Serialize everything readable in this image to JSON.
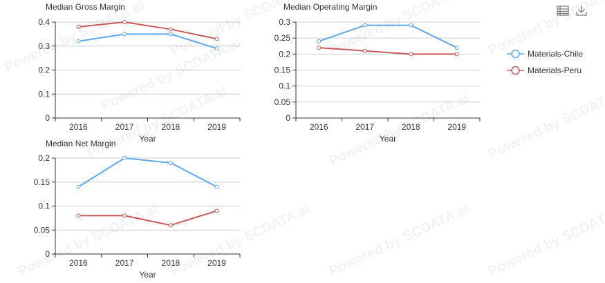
{
  "toolbar": {
    "data_view_icon": "table-icon",
    "download_icon": "download-icon"
  },
  "watermark": {
    "text": "Powered by SCDATA.ai"
  },
  "colors": {
    "chile": "#5aa8ef",
    "peru": "#c9585a",
    "axis": "#333333",
    "grid": "#cccccc"
  },
  "legend": {
    "placement": "right",
    "items": [
      {
        "label": "Materials-Chile",
        "color": "#5aa8ef"
      },
      {
        "label": "Materials-Peru",
        "color": "#c9585a"
      }
    ]
  },
  "chart_data": [
    {
      "type": "line",
      "title": "Median Gross Margin",
      "xlabel": "Year",
      "ylabel": "",
      "categories": [
        "2016",
        "2017",
        "2018",
        "2019"
      ],
      "ylim": [
        0,
        0.4
      ],
      "yticks": [
        "0",
        "0.1",
        "0.2",
        "0.3",
        "0.4"
      ],
      "grid": true,
      "series": [
        {
          "name": "Materials-Chile",
          "values": [
            0.32,
            0.35,
            0.35,
            0.29
          ]
        },
        {
          "name": "Materials-Peru",
          "values": [
            0.38,
            0.4,
            0.37,
            0.33
          ]
        }
      ]
    },
    {
      "type": "line",
      "title": "Median Operating Margin",
      "xlabel": "Year",
      "ylabel": "",
      "categories": [
        "2016",
        "2017",
        "2018",
        "2019"
      ],
      "ylim": [
        0,
        0.3
      ],
      "yticks": [
        "0",
        "0.05",
        "0.1",
        "0.15",
        "0.2",
        "0.25",
        "0.3"
      ],
      "grid": true,
      "series": [
        {
          "name": "Materials-Chile",
          "values": [
            0.24,
            0.29,
            0.29,
            0.22
          ]
        },
        {
          "name": "Materials-Peru",
          "values": [
            0.22,
            0.21,
            0.2,
            0.2
          ]
        }
      ]
    },
    {
      "type": "line",
      "title": "Median Net Margin",
      "xlabel": "Year",
      "ylabel": "",
      "categories": [
        "2016",
        "2017",
        "2018",
        "2019"
      ],
      "ylim": [
        0,
        0.2
      ],
      "yticks": [
        "0",
        "0.05",
        "0.1",
        "0.15",
        "0.2"
      ],
      "grid": true,
      "series": [
        {
          "name": "Materials-Chile",
          "values": [
            0.14,
            0.2,
            0.19,
            0.14
          ]
        },
        {
          "name": "Materials-Peru",
          "values": [
            0.08,
            0.08,
            0.06,
            0.09
          ]
        }
      ]
    }
  ]
}
